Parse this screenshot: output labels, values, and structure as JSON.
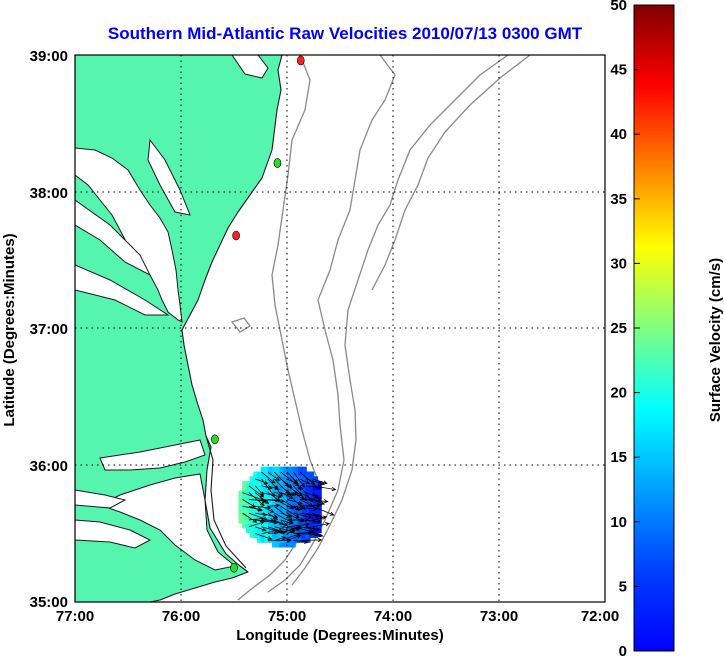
{
  "title": "Southern Mid-Atlantic Raw Velocities 2010/07/13 0300 GMT",
  "xlabel": "Longitude (Degrees:Minutes)",
  "ylabel": "Latitude (Degrees:Minutes)",
  "colorbar_label": "Surface Velocity (cm/s)",
  "x_ticks": [
    "77:00",
    "76:00",
    "75:00",
    "74:00",
    "73:00",
    "72:00"
  ],
  "y_ticks": [
    "39:00",
    "38:00",
    "37:00",
    "36:00",
    "35:00"
  ],
  "colorbar_ticks": [
    "50",
    "45",
    "40",
    "35",
    "30",
    "25",
    "20",
    "15",
    "10",
    "5",
    "0"
  ],
  "colors": {
    "title": "#0000ff",
    "land": "#55f5b0",
    "bathymetry": "#8a8a8a",
    "colormap": "jet"
  },
  "extent": {
    "lon_west": -77,
    "lon_east": -72,
    "lat_south": 35,
    "lat_north": 39
  },
  "colorbar_range": [
    0,
    50
  ],
  "stations": [
    {
      "lon": -74.87,
      "lat": 38.96,
      "color": "#ff2020"
    },
    {
      "lon": -75.09,
      "lat": 38.21,
      "color": "#20e020"
    },
    {
      "lon": -75.48,
      "lat": 37.68,
      "color": "#ff2020"
    },
    {
      "lon": -75.68,
      "lat": 36.19,
      "color": "#20e020"
    },
    {
      "lon": -75.5,
      "lat": 35.25,
      "color": "#20e020"
    }
  ],
  "velocity_field": {
    "description_region": "off Cape Hatteras",
    "lon_range": [
      -75.42,
      -74.72
    ],
    "lat_range": [
      35.4,
      35.96
    ],
    "speed_range_cm_s": [
      5,
      25
    ],
    "dominant_direction": "toward the east-southeast offshore"
  }
}
